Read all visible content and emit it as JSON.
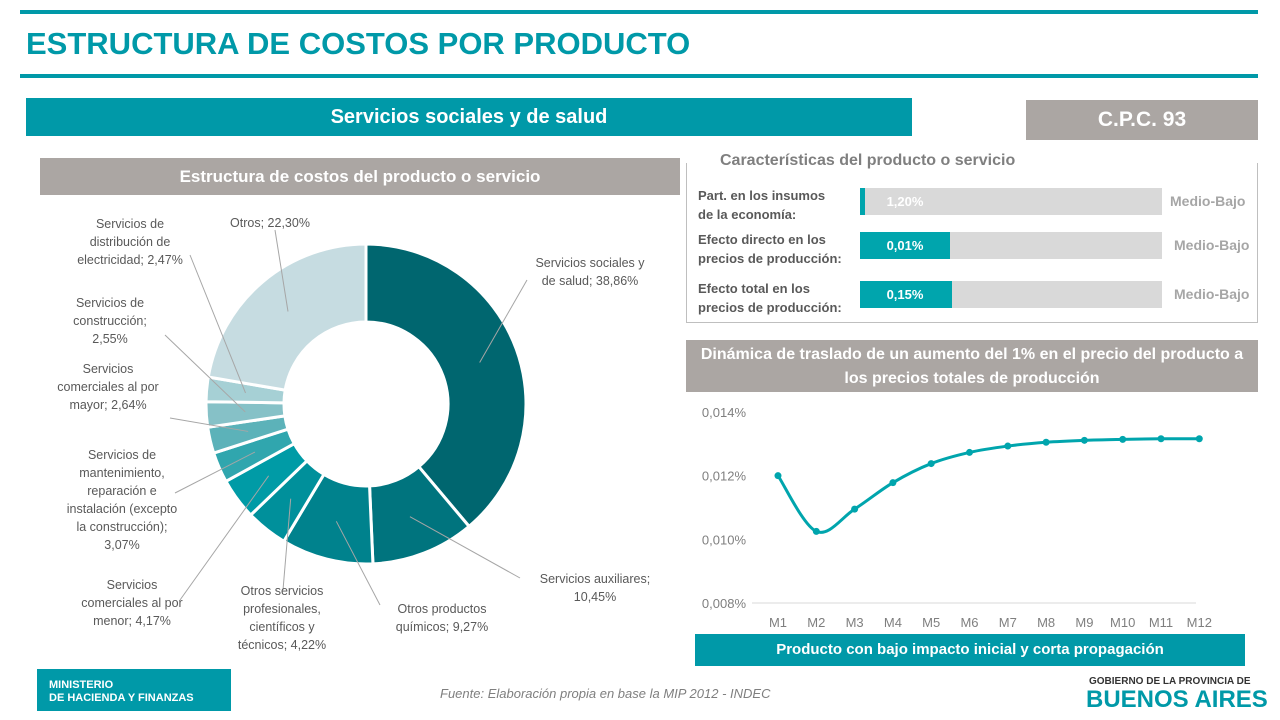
{
  "header": {
    "title": "ESTRUCTURA DE COSTOS POR PRODUCTO",
    "product": "Servicios sociales y de salud",
    "cpc": "C.P.C. 93"
  },
  "pie_section": {
    "title": "Estructura  de costos del producto  o servicio"
  },
  "characteristics": {
    "title": "Características del producto o servicio",
    "rows": [
      {
        "label_1": "Part. en los insumos",
        "label_2": "de la economía:",
        "value": "1,20%",
        "percent": 1.2,
        "level": "Medio-Bajo"
      },
      {
        "label_1": "Efecto directo en los",
        "label_2": "precios de producción:",
        "value": "0,01%",
        "percent": 0.01,
        "level": "Medio-Bajo"
      },
      {
        "label_1": "Efecto total en los",
        "label_2": "precios de producción:",
        "value": "0,15%",
        "percent": 0.15,
        "level": "Medio-Bajo"
      }
    ]
  },
  "line_section": {
    "title_1": "Dinámica de traslado de un aumento del 1% en el precio del producto a",
    "title_2": "los precios totales de producción",
    "conclusion": "Producto con bajo impacto inicial y corta propagación"
  },
  "footer": {
    "ministry_1": "MINISTERIO",
    "ministry_2": "DE HACIENDA Y FINANZAS",
    "source": "Fuente: Elaboración propia en base la MIP 2012 - INDEC",
    "logo_1": "GOBIERNO DE LA PROVINCIA DE",
    "logo_2": "BUENOS AIRES"
  },
  "colors": {
    "accent": "#0099a8",
    "gray": "#aba6a3"
  },
  "chart_data": [
    {
      "type": "pie",
      "donut": true,
      "labels": [
        "Servicios sociales y de salud",
        "Servicios auxiliares",
        "Otros productos químicos",
        "Otros servicios profesionales, científicos y técnicos",
        "Servicios comerciales al por menor",
        "Servicios de mantenimiento, reparación e instalación (excepto la construcción)",
        "Servicios comerciales al por mayor",
        "Servicios de construcción",
        "Servicios de distribución de electricidad",
        "Otros"
      ],
      "data_labels": [
        "Servicios sociales y|de salud; 38,86%",
        "Servicios auxiliares;|10,45%",
        "Otros productos|químicos; 9,27%",
        "Otros servicios|profesionales,|científicos y|técnicos; 4,22%",
        "Servicios|comerciales al por|menor; 4,17%",
        "Servicios de|mantenimiento,|reparación e|instalación (excepto|la construcción);|3,07%",
        "Servicios|comerciales al por|mayor; 2,64%",
        "Servicios de|construcción;|2,55%",
        "Servicios de|distribución de|electricidad; 2,47%",
        "Otros; 22,30%"
      ],
      "values": [
        38.86,
        10.45,
        9.27,
        4.22,
        4.17,
        3.07,
        2.64,
        2.55,
        2.47,
        22.3
      ],
      "colors": [
        "#00666f",
        "#00747e",
        "#00828d",
        "#00909b",
        "#009ba6",
        "#30a6ae",
        "#5cb2b9",
        "#86c1c7",
        "#a6d0d5",
        "#c6dce1"
      ]
    },
    {
      "type": "line",
      "categories": [
        "M1",
        "M2",
        "M3",
        "M4",
        "M5",
        "M6",
        "M7",
        "M8",
        "M9",
        "M10",
        "M11",
        "M12"
      ],
      "values": [
        0.012,
        0.01025,
        0.01095,
        0.01178,
        0.01238,
        0.01273,
        0.01293,
        0.01305,
        0.01311,
        0.01314,
        0.01316,
        0.01316
      ],
      "yticks": [
        "0,008%",
        "0,010%",
        "0,012%",
        "0,014%"
      ],
      "ylim": [
        0.008,
        0.014
      ],
      "color": "#00a5ad",
      "grid": false
    }
  ]
}
